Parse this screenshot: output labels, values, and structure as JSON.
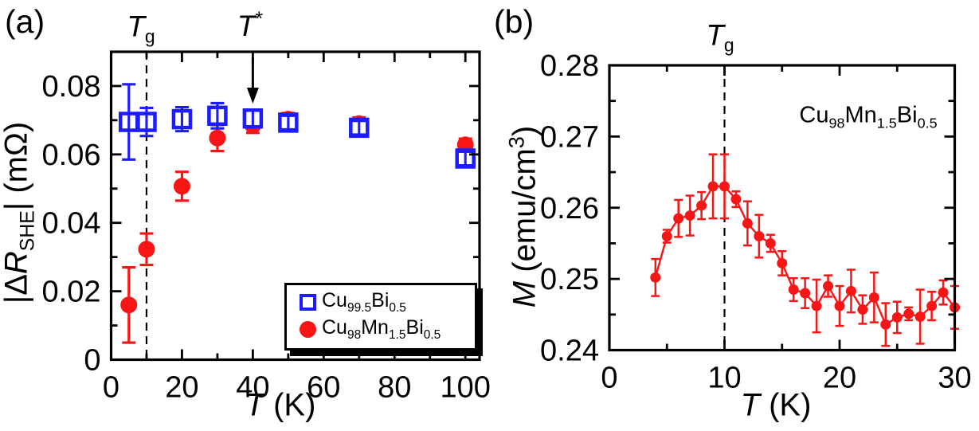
{
  "page": {
    "panel_a_label": "(a)",
    "panel_b_label": "(b)"
  },
  "colors": {
    "blue": "#1c1cff",
    "red": "#f81515",
    "axis": "#000000",
    "background": "#ffffff"
  },
  "panel_a": {
    "ylabel": {
      "pre": "|Δ",
      "sym": "R",
      "sub": "SHE",
      "post": "| (mΩ)"
    },
    "xlabel": {
      "sym": "T",
      "post": " (K)"
    },
    "tg": {
      "sym": "T",
      "sub": "g"
    },
    "tstar": {
      "sym": "T",
      "sup": "*"
    },
    "legend": {
      "entries": [
        {
          "parts": [
            "Cu",
            "99.5",
            "Bi",
            "0.5"
          ]
        },
        {
          "parts": [
            "Cu",
            "98",
            "Mn",
            "1.5",
            "Bi",
            "0.5"
          ]
        }
      ]
    }
  },
  "panel_b": {
    "ylabel": {
      "sym": "M",
      "mid": " (emu/cm",
      "sup": "3",
      "post": ")"
    },
    "xlabel": {
      "sym": "T",
      "post": " (K)"
    },
    "tg": {
      "sym": "T",
      "sub": "g"
    },
    "sample": {
      "parts": [
        "Cu",
        "98",
        "Mn",
        "1.5",
        "Bi",
        "0.5"
      ]
    }
  },
  "chart_data": [
    {
      "type": "scatter",
      "title": "",
      "xlabel": "T (K)",
      "ylabel": "|ΔR_SHE| (mΩ)",
      "xlim": [
        0,
        104
      ],
      "ylim": [
        0,
        0.09
      ],
      "grid": false,
      "legend_position": "bottom-right",
      "x_major_ticks": [
        0,
        20,
        40,
        60,
        80,
        100
      ],
      "x_tick_labels": [
        "0",
        "20",
        "40",
        "60",
        "80",
        "100"
      ],
      "x_minor_ticks": [
        10,
        30,
        50,
        70,
        90
      ],
      "y_major_ticks": [
        0,
        0.02,
        0.04,
        0.06,
        0.08
      ],
      "y_tick_labels": [
        "0",
        "0.02",
        "0.04",
        "0.06",
        "0.08"
      ],
      "y_minor_ticks": [
        0.01,
        0.03,
        0.05,
        0.07
      ],
      "dashed_line_x": 10,
      "dashed_line_label": "T_g",
      "arrow_x": 40,
      "arrow_label": "T*",
      "series": [
        {
          "name": "Cu98Mn1.5Bi0.5",
          "marker": "filled-circle",
          "color_key": "red",
          "line": false,
          "x": [
            5,
            10,
            20,
            30,
            40,
            50,
            70,
            100
          ],
          "y": [
            0.016,
            0.0323,
            0.0507,
            0.0648,
            0.0685,
            0.0703,
            0.069,
            0.0628
          ],
          "yerr": [
            0.011,
            0.0046,
            0.0042,
            0.0038,
            0.0022,
            0.0018,
            0.0018,
            0.0018
          ]
        },
        {
          "name": "Cu99.5Bi0.5",
          "marker": "open-square",
          "color_key": "blue",
          "line": false,
          "error_over_marker": true,
          "x": [
            5,
            10,
            20,
            30,
            40,
            50,
            70,
            100
          ],
          "y": [
            0.0695,
            0.0695,
            0.0703,
            0.0713,
            0.0705,
            0.0693,
            0.0678,
            0.0588
          ],
          "yerr": [
            0.011,
            0.0041,
            0.0035,
            0.0037,
            0.0024,
            0.002,
            0.002,
            0.002
          ]
        }
      ]
    },
    {
      "type": "line-scatter",
      "title": "",
      "xlabel": "T (K)",
      "ylabel": "M (emu/cm3)",
      "xlim": [
        0,
        30
      ],
      "ylim": [
        0.24,
        0.28
      ],
      "grid": false,
      "sample_label": "Cu98Mn1.5Bi0.5",
      "x_major_ticks": [
        0,
        10,
        20,
        30
      ],
      "x_tick_labels": [
        "0",
        "10",
        "20",
        "30"
      ],
      "x_minor_ticks": [
        5,
        15,
        25
      ],
      "y_major_ticks": [
        0.24,
        0.25,
        0.26,
        0.27,
        0.28
      ],
      "y_tick_labels": [
        "0.24",
        "0.25",
        "0.26",
        "0.27",
        "0.28"
      ],
      "y_minor_ticks": [
        0.245,
        0.255,
        0.265,
        0.275
      ],
      "dashed_line_x": 10,
      "dashed_line_label": "T_g",
      "series": [
        {
          "name": "Cu98Mn1.5Bi0.5",
          "marker": "filled-circle",
          "color_key": "red",
          "line": true,
          "x": [
            4,
            5,
            6,
            7,
            8,
            9,
            10,
            11,
            12,
            13,
            14,
            15,
            16,
            17,
            18,
            19,
            20,
            21,
            22,
            23,
            24,
            25,
            26,
            27,
            28,
            29,
            30
          ],
          "y": [
            0.2502,
            0.256,
            0.2585,
            0.2589,
            0.2603,
            0.263,
            0.263,
            0.2612,
            0.2578,
            0.256,
            0.255,
            0.2522,
            0.2485,
            0.248,
            0.2462,
            0.249,
            0.2462,
            0.2483,
            0.2457,
            0.2474,
            0.2436,
            0.2446,
            0.2451,
            0.2447,
            0.2462,
            0.2481,
            0.246
          ],
          "yerr": [
            0.0026,
            0.0009,
            0.0026,
            0.0028,
            0.0019,
            0.0045,
            0.0045,
            0.0011,
            0.0031,
            0.003,
            0.0012,
            0.0017,
            0.0016,
            0.0021,
            0.0037,
            0.0015,
            0.0028,
            0.003,
            0.002,
            0.0035,
            0.003,
            0.0022,
            0.0009,
            0.0038,
            0.002,
            0.0017,
            0.003
          ]
        }
      ]
    }
  ]
}
